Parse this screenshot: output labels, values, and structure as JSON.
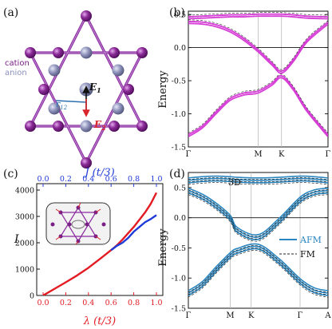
{
  "panels": {
    "a": {
      "label": "(a)",
      "legend": {
        "cation": "cation",
        "anion": "anion"
      },
      "colors": {
        "cation": "#7a1f86",
        "anion": "#8a8fb8",
        "bond": "#8a2aa0",
        "e1": "#111111",
        "e2": "#d8262c",
        "r12": "#2b6fb0"
      },
      "vector_labels": {
        "e1": "E",
        "e1_sub": "1",
        "e2": "E",
        "e2_sub": "2",
        "r12": "r",
        "r12_sub": "12"
      }
    },
    "b": {
      "label": "(b)",
      "ylabel": "Energy",
      "xticks": [
        "Γ",
        "M",
        "K",
        "Γ"
      ]
    },
    "c": {
      "label": "(c)",
      "ylabel": "I",
      "xlabel_bottom": "λ (t/3)",
      "xlabel_top": "J (t/3)",
      "colors": {
        "lambda": "#e31b23",
        "J": "#1f3bd8"
      }
    },
    "d": {
      "label": "(d)",
      "ylabel": "Energy",
      "xticks": [
        "Γ",
        "M",
        "K",
        "Γ",
        "A"
      ],
      "annotation": "3D",
      "legend": {
        "afm": "AFM",
        "fm": "FM"
      },
      "colors": {
        "afm": "#2a86c0",
        "fm": "#222222"
      }
    }
  },
  "chart_data": [
    {
      "panel": "b",
      "type": "line",
      "ylabel": "Energy",
      "ylim": [
        -1.5,
        0.55
      ],
      "yticks": [
        -1.5,
        -1.0,
        -0.5,
        0.0,
        0.5
      ],
      "ytick_labels": [
        "-1.5",
        "-1.0",
        "-0.5",
        "0.0",
        "0.5"
      ],
      "x": [
        0,
        0.1,
        0.2,
        0.3,
        0.4,
        0.5,
        0.6,
        0.667,
        0.75,
        0.85,
        1.0
      ],
      "series": [
        {
          "y": [
            0.45,
            0.46,
            0.47,
            0.48,
            0.48,
            0.49,
            0.49,
            0.49,
            0.48,
            0.46,
            0.45
          ],
          "color": "#d63cd6"
        },
        {
          "y": [
            0.38,
            0.37,
            0.33,
            0.25,
            0.12,
            -0.05,
            -0.25,
            -0.37,
            -0.2,
            0.1,
            0.37
          ],
          "color": "#d63cd6"
        },
        {
          "y": [
            -1.33,
            -1.2,
            -0.98,
            -0.78,
            -0.7,
            -0.67,
            -0.55,
            -0.44,
            -0.62,
            -0.95,
            -1.33
          ],
          "color": "#d63cd6"
        }
      ]
    },
    {
      "panel": "c",
      "type": "line",
      "ylabel": "I",
      "ylim": [
        0,
        4000
      ],
      "yticks": [
        0,
        1000,
        2000,
        3000,
        4000
      ],
      "ytick_labels": [
        "0",
        "1000",
        "2000",
        "3000",
        "4000"
      ],
      "xlim": [
        0,
        1.0
      ],
      "xticks": [
        0.0,
        0.2,
        0.4,
        0.6,
        0.8,
        1.0
      ],
      "xtick_labels": [
        "0.0",
        "0.2",
        "0.4",
        "0.6",
        "0.8",
        "1.0"
      ],
      "series": [
        {
          "axis": "bottom",
          "color": "#e31b23",
          "x": [
            0,
            0.1,
            0.2,
            0.3,
            0.4,
            0.5,
            0.6,
            0.65,
            0.7,
            0.8,
            0.9,
            0.95,
            1.0
          ],
          "y": [
            0,
            250,
            500,
            760,
            1050,
            1380,
            1720,
            1900,
            2120,
            2600,
            3150,
            3480,
            3900
          ]
        },
        {
          "axis": "top",
          "color": "#1f3bd8",
          "x": [
            0.6,
            0.65,
            0.7,
            0.75,
            0.8,
            0.85,
            0.9,
            0.95,
            1.0
          ],
          "y": [
            1720,
            1880,
            2000,
            2180,
            2420,
            2600,
            2780,
            2900,
            3050
          ]
        }
      ]
    },
    {
      "panel": "d",
      "type": "line",
      "ylabel": "Energy",
      "ylim": [
        -1.5,
        0.75
      ],
      "yticks": [
        -1.5,
        -1.0,
        -0.5,
        0.0,
        0.5
      ],
      "ytick_labels": [
        "-1.5",
        "-1.0",
        "-0.5",
        "0.0",
        "0.5"
      ],
      "x": [
        0,
        0.1,
        0.2,
        0.3,
        0.35,
        0.5,
        0.65,
        0.8,
        0.9,
        1.0
      ],
      "series": [
        {
          "name": "AFM",
          "y": [
            0.62,
            0.64,
            0.65,
            0.64,
            0.63,
            0.62,
            0.63,
            0.65,
            0.64,
            0.62
          ],
          "color": "#2a86c0"
        },
        {
          "name": "AFM",
          "y": [
            0.45,
            0.35,
            0.2,
            0.0,
            -0.2,
            -0.32,
            -0.05,
            0.3,
            0.42,
            0.45
          ],
          "color": "#2a86c0"
        },
        {
          "name": "AFM",
          "y": [
            -1.25,
            -1.1,
            -0.85,
            -0.62,
            -0.55,
            -0.48,
            -0.72,
            -1.05,
            -1.2,
            -1.25
          ],
          "color": "#2a86c0"
        }
      ]
    }
  ]
}
